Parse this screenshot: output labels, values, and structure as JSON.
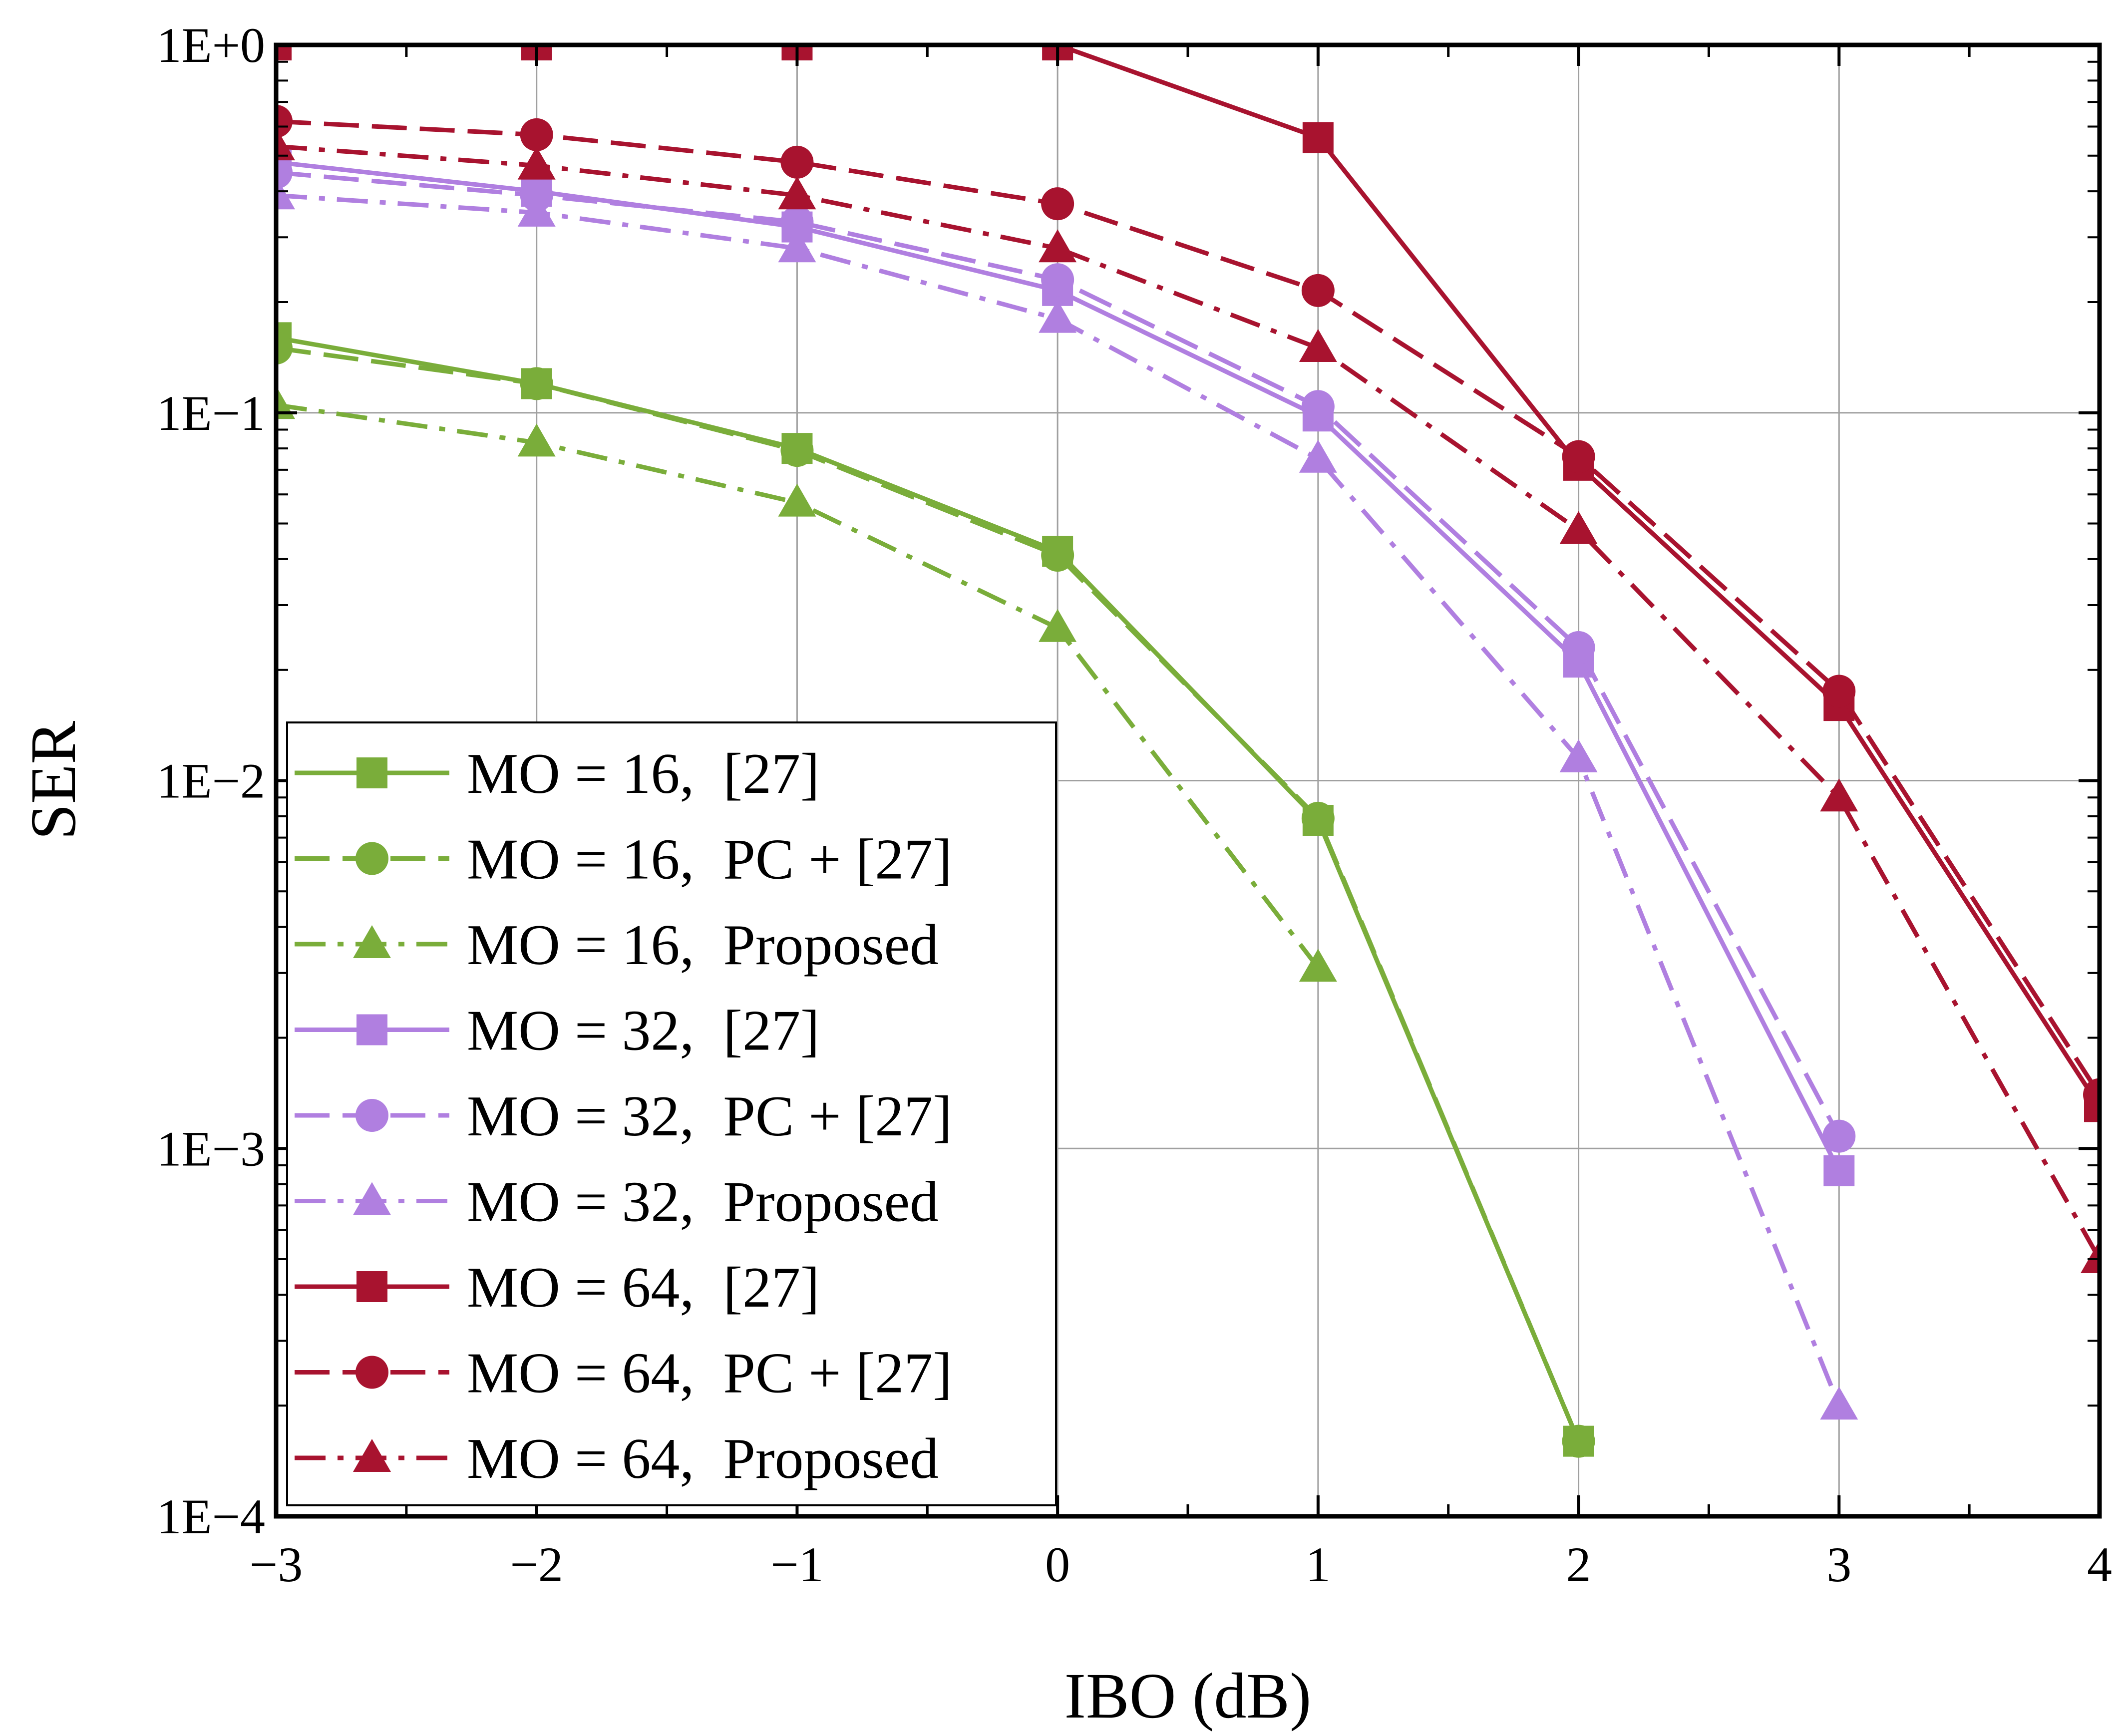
{
  "chart_data": {
    "type": "line",
    "title": "",
    "xlabel": "IBO (dB)",
    "ylabel": "SER",
    "x_scale": "linear",
    "y_scale": "log",
    "xlim": [
      -3,
      4
    ],
    "ylim": [
      0.0001,
      1
    ],
    "grid": true,
    "legend_position": "bottom-left",
    "x_ticks": [
      -3,
      -2,
      -1,
      0,
      1,
      2,
      3,
      4
    ],
    "x_tick_labels": [
      "−3",
      "−2",
      "−1",
      "0",
      "1",
      "2",
      "3",
      "4"
    ],
    "y_ticks": [
      0.0001,
      0.001,
      0.01,
      0.1,
      1
    ],
    "y_tick_labels": [
      "1E−4",
      "1E−3",
      "1E−2",
      "1E−1",
      "1E+0"
    ],
    "colors": {
      "mo16": "#7aad3a",
      "mo32": "#b07fe0",
      "mo64": "#a8132f"
    },
    "series": [
      {
        "name": "MO = 16,  [27]",
        "color": "#7aad3a",
        "dash": "solid",
        "marker": "square",
        "x": [
          -3,
          -2,
          -1,
          0,
          1,
          2
        ],
        "y": [
          0.16,
          0.12,
          0.08,
          0.042,
          0.0078,
          0.00016
        ]
      },
      {
        "name": "MO = 16,  PC + [27]",
        "color": "#7aad3a",
        "dash": "dashed",
        "marker": "circle",
        "x": [
          -3,
          -2,
          -1,
          0,
          1,
          2
        ],
        "y": [
          0.15,
          0.12,
          0.079,
          0.041,
          0.0079,
          0.00016
        ]
      },
      {
        "name": "MO = 16,  Proposed",
        "color": "#7aad3a",
        "dash": "dashdot",
        "marker": "triangle",
        "x": [
          -3,
          -2,
          -1,
          0,
          1
        ],
        "y": [
          0.105,
          0.083,
          0.057,
          0.026,
          0.0031
        ]
      },
      {
        "name": "MO = 32,  [27]",
        "color": "#b07fe0",
        "dash": "solid",
        "marker": "square",
        "x": [
          -3,
          -2,
          -1,
          0,
          1,
          2,
          3
        ],
        "y": [
          0.48,
          0.4,
          0.32,
          0.215,
          0.098,
          0.021,
          0.00087
        ]
      },
      {
        "name": "MO = 32,  PC + [27]",
        "color": "#b07fe0",
        "dash": "dashed",
        "marker": "circle",
        "x": [
          -3,
          -2,
          -1,
          0,
          1,
          2,
          3
        ],
        "y": [
          0.45,
          0.39,
          0.33,
          0.23,
          0.104,
          0.023,
          0.00108
        ]
      },
      {
        "name": "MO = 32,  Proposed",
        "color": "#b07fe0",
        "dash": "dashdot",
        "marker": "triangle",
        "x": [
          -3,
          -2,
          -1,
          0,
          1,
          2,
          3
        ],
        "y": [
          0.39,
          0.35,
          0.28,
          0.18,
          0.075,
          0.0115,
          0.0002
        ]
      },
      {
        "name": "MO = 64,  [27]",
        "color": "#a8132f",
        "dash": "solid",
        "marker": "square",
        "x": [
          -3,
          -2,
          -1,
          0,
          1,
          2,
          3,
          4
        ],
        "y": [
          1.0,
          1.0,
          1.0,
          1.0,
          0.56,
          0.072,
          0.016,
          0.0013
        ]
      },
      {
        "name": "MO = 64,  PC + [27]",
        "color": "#a8132f",
        "dash": "dashed",
        "marker": "circle",
        "x": [
          -3,
          -2,
          -1,
          0,
          1,
          2,
          3,
          4
        ],
        "y": [
          0.62,
          0.57,
          0.48,
          0.37,
          0.215,
          0.076,
          0.0175,
          0.0014
        ]
      },
      {
        "name": "MO = 64,  Proposed",
        "color": "#a8132f",
        "dash": "dashdot",
        "marker": "triangle",
        "x": [
          -3,
          -2,
          -1,
          0,
          1,
          2,
          3,
          4
        ],
        "y": [
          0.53,
          0.47,
          0.39,
          0.28,
          0.15,
          0.048,
          0.009,
          0.0005
        ]
      }
    ]
  }
}
